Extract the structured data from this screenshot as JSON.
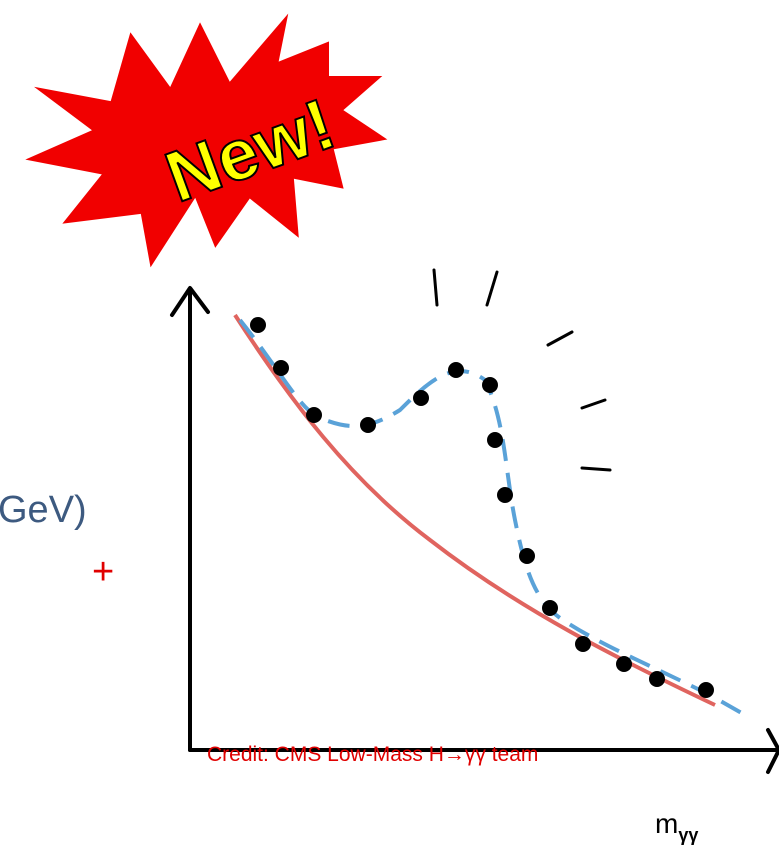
{
  "badge": "New!",
  "fragments": [
    "GeV)",
    "+"
  ],
  "credit": "Credit: CMS Low-Mass H→γγ team",
  "axis_label": {
    "main": "m",
    "sub": "γγ"
  }
}
